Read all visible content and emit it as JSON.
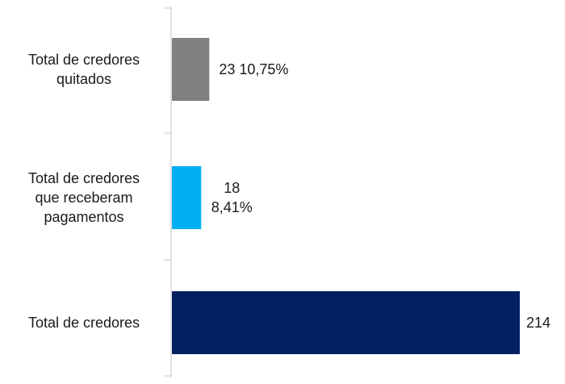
{
  "chart_data": {
    "type": "bar",
    "orientation": "horizontal",
    "categories": [
      "Total de credores quitados",
      "Total de credores que receberam pagamentos",
      "Total de credores"
    ],
    "category_lines": [
      [
        "Total de credores",
        "quitados"
      ],
      [
        "Total de credores",
        "que receberam",
        "pagamentos"
      ],
      [
        "Total de credores"
      ]
    ],
    "values": [
      23,
      18,
      214
    ],
    "data_labels": [
      [
        "23  10,75%"
      ],
      [
        "18",
        "8,41%"
      ],
      [
        "214"
      ]
    ],
    "colors": [
      "#808080",
      "#00b0f0",
      "#002060"
    ],
    "xlim": [
      0,
      214
    ],
    "grid": false,
    "legend": "none",
    "title": ""
  }
}
